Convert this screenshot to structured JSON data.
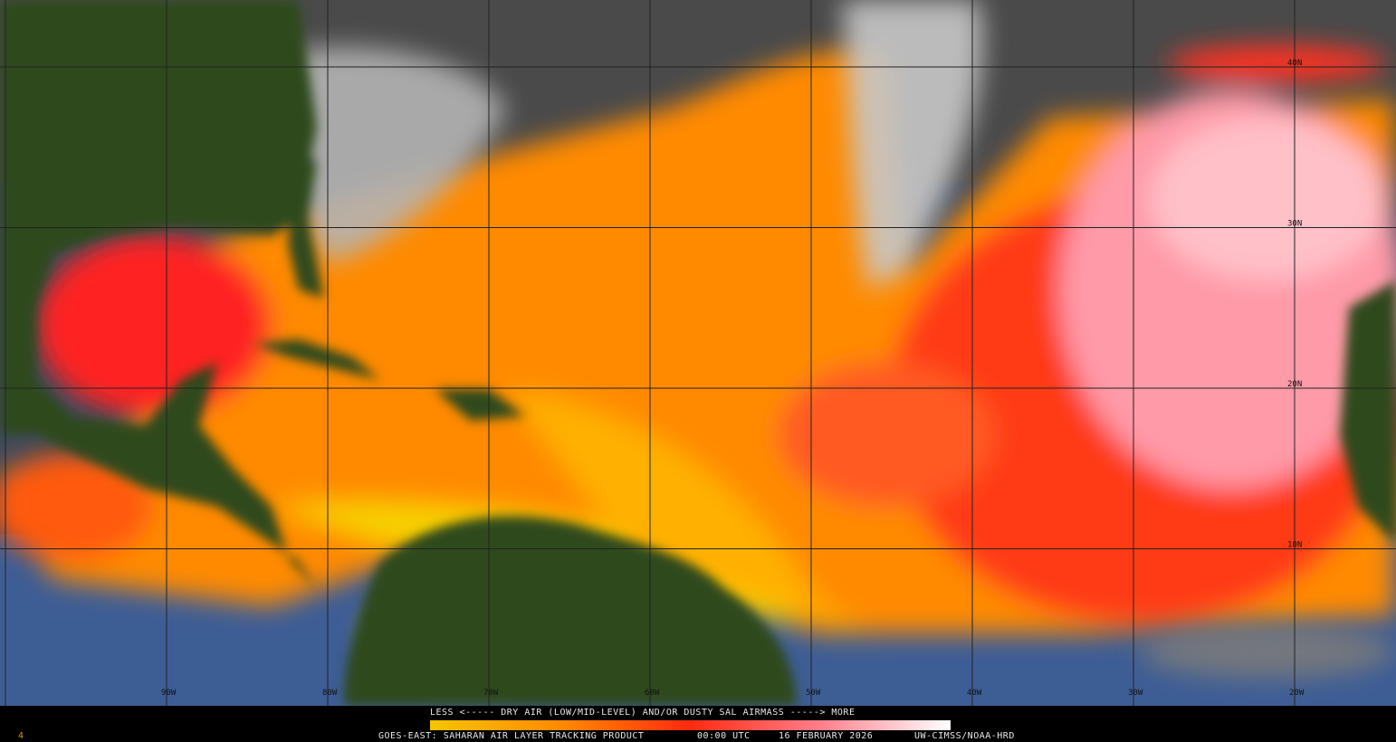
{
  "map": {
    "lon_labels": [
      "90W",
      "80W",
      "70W",
      "60W",
      "50W",
      "40W",
      "30W",
      "20W"
    ],
    "lat_labels": [
      "40N",
      "30N",
      "20N",
      "10N"
    ]
  },
  "legend": {
    "text": "LESS <----- DRY AIR (LOW/MID-LEVEL) AND/OR DUSTY SAL AIRMASS -----> MORE"
  },
  "footer": {
    "product": "GOES-EAST: SAHARAN AIR LAYER TRACKING PRODUCT",
    "time": "00:00 UTC",
    "date": "16 FEBRUARY 2026",
    "credit": "UW-CIMSS/NOAA-HRD"
  },
  "corner": "4"
}
